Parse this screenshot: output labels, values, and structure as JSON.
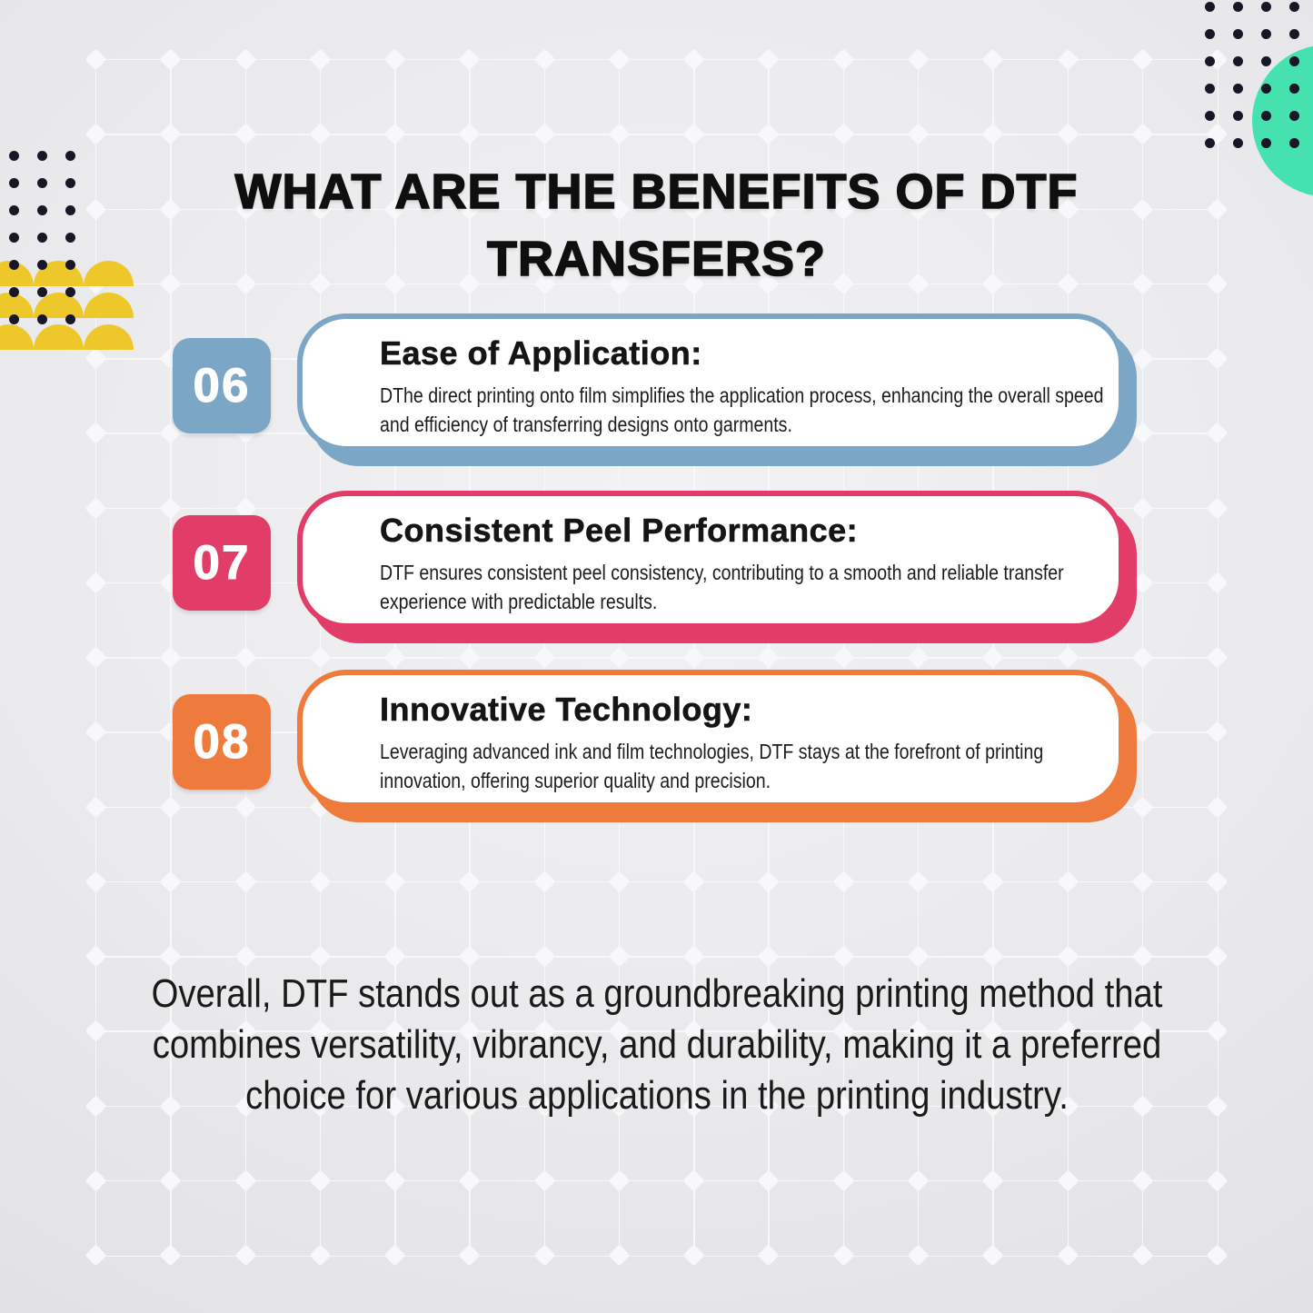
{
  "title": "WHAT ARE THE BENEFITS OF DTF TRANSFERS?",
  "benefits": [
    {
      "number": "06",
      "title": "Ease of Application:",
      "description": "DThe direct printing onto film simplifies the application process, enhancing the overall speed and efficiency of transferring designs onto garments.",
      "accent_color": "#7ca6c6"
    },
    {
      "number": "07",
      "title": "Consistent Peel Performance:",
      "description": "DTF ensures consistent peel consistency, contributing to a smooth and reliable transfer experience with predictable results.",
      "accent_color": "#e23c68"
    },
    {
      "number": "08",
      "title": "Innovative Technology:",
      "description": "Leveraging advanced ink and film technologies, DTF stays at the forefront of printing innovation, offering superior quality and precision.",
      "accent_color": "#ee7b3c"
    }
  ],
  "closing_paragraph": "Overall, DTF stands out as a groundbreaking printing method that combines versatility, vibrancy, and durability, making it a preferred choice for various applications in the printing industry.",
  "decorations": {
    "teal_circle_color": "#45e2b0",
    "yellow_semicircle_color": "#eec82b",
    "dot_color": "#171728",
    "grid_line_color": "#f8f8fa",
    "text_color": "#111111"
  }
}
